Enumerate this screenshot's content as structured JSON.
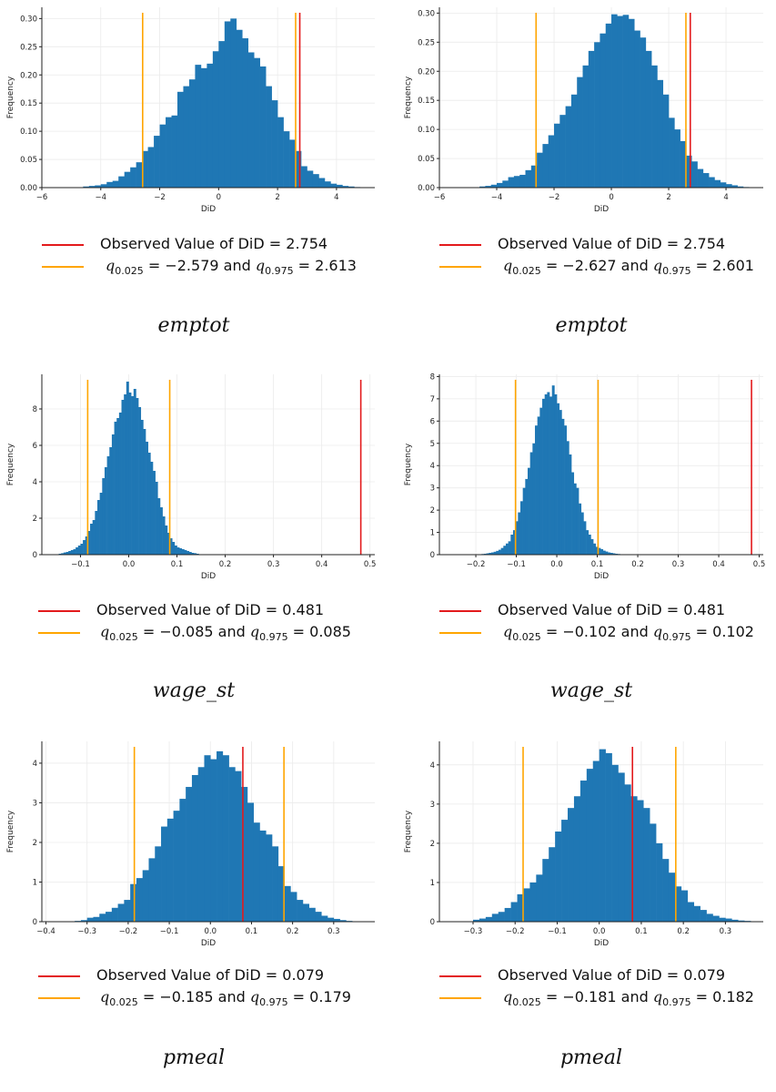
{
  "colors": {
    "bar": "#1f77b4",
    "observed": "#e31a1c",
    "quantile": "#ffa500",
    "grid": "#ebebeb"
  },
  "chart_data": [
    {
      "type": "bar",
      "xlabel": "DiD",
      "ylabel": "Frequency",
      "xlim": [
        -6,
        5.3
      ],
      "ylim": [
        0,
        0.32
      ],
      "xticks": [
        -6,
        -4,
        -2,
        0,
        2,
        4
      ],
      "xtick_labels": [
        "−6",
        "−4",
        "−2",
        "0",
        "2",
        "4"
      ],
      "yticks": [
        0,
        0.05,
        0.1,
        0.15,
        0.2,
        0.25,
        0.3
      ],
      "ytick_labels": [
        "0.00",
        "0.05",
        "0.10",
        "0.15",
        "0.20",
        "0.25",
        "0.30"
      ],
      "bin_width": 0.2,
      "bins_x": [
        -4.6,
        -4.4,
        -4.2,
        -4.0,
        -3.8,
        -3.6,
        -3.4,
        -3.2,
        -3.0,
        -2.8,
        -2.6,
        -2.4,
        -2.2,
        -2.0,
        -1.8,
        -1.6,
        -1.4,
        -1.2,
        -1.0,
        -0.8,
        -0.6,
        -0.4,
        -0.2,
        0.0,
        0.2,
        0.4,
        0.6,
        0.8,
        1.0,
        1.2,
        1.4,
        1.6,
        1.8,
        2.0,
        2.2,
        2.4,
        2.6,
        2.8,
        3.0,
        3.2,
        3.4,
        3.6,
        3.8,
        4.0,
        4.2,
        4.4,
        4.6
      ],
      "bins_y": [
        0.002,
        0.003,
        0.004,
        0.006,
        0.01,
        0.012,
        0.02,
        0.028,
        0.036,
        0.045,
        0.065,
        0.072,
        0.092,
        0.112,
        0.125,
        0.128,
        0.17,
        0.18,
        0.192,
        0.218,
        0.212,
        0.22,
        0.242,
        0.26,
        0.295,
        0.3,
        0.28,
        0.265,
        0.24,
        0.23,
        0.215,
        0.18,
        0.155,
        0.125,
        0.1,
        0.085,
        0.065,
        0.038,
        0.03,
        0.024,
        0.017,
        0.011,
        0.007,
        0.005,
        0.003,
        0.002,
        0.001
      ],
      "observed": 2.754,
      "q_low": -2.579,
      "q_high": 2.613,
      "legend": [
        "Observed Value of DiD = 2.754",
        "= −2.579 and",
        "= 2.613"
      ],
      "caption": "emptot"
    },
    {
      "type": "bar",
      "xlabel": "DiD",
      "ylabel": "Frequency",
      "xlim": [
        -6,
        5.3
      ],
      "ylim": [
        0,
        0.31
      ],
      "xticks": [
        -6,
        -4,
        -2,
        0,
        2,
        4
      ],
      "xtick_labels": [
        "−6",
        "−4",
        "−2",
        "0",
        "2",
        "4"
      ],
      "yticks": [
        0,
        0.05,
        0.1,
        0.15,
        0.2,
        0.25,
        0.3
      ],
      "ytick_labels": [
        "0.00",
        "0.05",
        "0.10",
        "0.15",
        "0.20",
        "0.25",
        "0.30"
      ],
      "bin_width": 0.2,
      "bins_x": [
        -4.6,
        -4.4,
        -4.2,
        -4.0,
        -3.8,
        -3.6,
        -3.4,
        -3.2,
        -3.0,
        -2.8,
        -2.6,
        -2.4,
        -2.2,
        -2.0,
        -1.8,
        -1.6,
        -1.4,
        -1.2,
        -1.0,
        -0.8,
        -0.6,
        -0.4,
        -0.2,
        0.0,
        0.2,
        0.4,
        0.6,
        0.8,
        1.0,
        1.2,
        1.4,
        1.6,
        1.8,
        2.0,
        2.2,
        2.4,
        2.6,
        2.8,
        3.0,
        3.2,
        3.4,
        3.6,
        3.8,
        4.0,
        4.2,
        4.4,
        4.6
      ],
      "bins_y": [
        0.002,
        0.003,
        0.005,
        0.008,
        0.012,
        0.018,
        0.02,
        0.022,
        0.03,
        0.038,
        0.06,
        0.075,
        0.09,
        0.11,
        0.125,
        0.14,
        0.16,
        0.19,
        0.21,
        0.235,
        0.25,
        0.265,
        0.282,
        0.298,
        0.295,
        0.297,
        0.29,
        0.27,
        0.258,
        0.235,
        0.21,
        0.185,
        0.16,
        0.12,
        0.1,
        0.08,
        0.055,
        0.045,
        0.032,
        0.025,
        0.018,
        0.013,
        0.009,
        0.006,
        0.004,
        0.002,
        0.001
      ],
      "observed": 2.754,
      "q_low": -2.627,
      "q_high": 2.601,
      "legend": [
        "Observed Value of DiD = 2.754",
        "= −2.627 and",
        "= 2.601"
      ],
      "caption": "emptot"
    },
    {
      "type": "bar",
      "xlabel": "DiD",
      "ylabel": "Frequency",
      "xlim": [
        -0.18,
        0.51
      ],
      "ylim": [
        0,
        9.9
      ],
      "xticks": [
        -0.1,
        0,
        0.1,
        0.2,
        0.3,
        0.4,
        0.5
      ],
      "xtick_labels": [
        "−0.1",
        "0.0",
        "0.1",
        "0.2",
        "0.3",
        "0.4",
        "0.5"
      ],
      "yticks": [
        0,
        2,
        4,
        6,
        8
      ],
      "ytick_labels": [
        "0",
        "2",
        "4",
        "6",
        "8"
      ],
      "bin_width": 0.005,
      "bins_x": [
        -0.145,
        -0.14,
        -0.135,
        -0.13,
        -0.125,
        -0.12,
        -0.115,
        -0.11,
        -0.105,
        -0.1,
        -0.095,
        -0.09,
        -0.085,
        -0.08,
        -0.075,
        -0.07,
        -0.065,
        -0.06,
        -0.055,
        -0.05,
        -0.045,
        -0.04,
        -0.035,
        -0.03,
        -0.025,
        -0.02,
        -0.015,
        -0.01,
        -0.005,
        0.0,
        0.005,
        0.01,
        0.015,
        0.02,
        0.025,
        0.03,
        0.035,
        0.04,
        0.045,
        0.05,
        0.055,
        0.06,
        0.065,
        0.07,
        0.075,
        0.08,
        0.085,
        0.09,
        0.095,
        0.1,
        0.105,
        0.11,
        0.115,
        0.12,
        0.125,
        0.13,
        0.135,
        0.14
      ],
      "bins_y": [
        0.05,
        0.08,
        0.12,
        0.15,
        0.2,
        0.25,
        0.3,
        0.4,
        0.5,
        0.6,
        0.8,
        1.0,
        1.3,
        1.7,
        1.9,
        2.4,
        3.0,
        3.4,
        4.2,
        4.8,
        5.4,
        5.9,
        6.6,
        7.3,
        7.5,
        7.8,
        8.5,
        8.8,
        9.5,
        8.9,
        8.7,
        9.1,
        8.6,
        8.1,
        7.4,
        6.9,
        6.2,
        5.6,
        5.1,
        4.6,
        4.0,
        3.1,
        2.6,
        2.1,
        1.6,
        1.2,
        0.9,
        0.7,
        0.5,
        0.4,
        0.35,
        0.3,
        0.25,
        0.2,
        0.15,
        0.1,
        0.08,
        0.05
      ],
      "observed": 0.481,
      "q_low": -0.085,
      "q_high": 0.085,
      "legend": [
        "Observed Value of DiD = 0.481",
        "= −0.085 and",
        "= 0.085"
      ],
      "caption": "wage_st"
    },
    {
      "type": "bar",
      "xlabel": "DiD",
      "ylabel": "Frequency",
      "xlim": [
        -0.29,
        0.51
      ],
      "ylim": [
        0,
        8.1
      ],
      "xticks": [
        -0.2,
        -0.1,
        0,
        0.1,
        0.2,
        0.3,
        0.4,
        0.5
      ],
      "xtick_labels": [
        "−0.2",
        "−0.1",
        "0.0",
        "0.1",
        "0.2",
        "0.3",
        "0.4",
        "0.5"
      ],
      "yticks": [
        0,
        1,
        2,
        3,
        4,
        5,
        6,
        7,
        8
      ],
      "ytick_labels": [
        "0",
        "1",
        "2",
        "3",
        "4",
        "5",
        "6",
        "7",
        "8"
      ],
      "bin_width": 0.006,
      "bins_x": [
        -0.186,
        -0.18,
        -0.174,
        -0.168,
        -0.162,
        -0.156,
        -0.15,
        -0.144,
        -0.138,
        -0.132,
        -0.126,
        -0.12,
        -0.114,
        -0.108,
        -0.102,
        -0.096,
        -0.09,
        -0.084,
        -0.078,
        -0.072,
        -0.066,
        -0.06,
        -0.054,
        -0.048,
        -0.042,
        -0.036,
        -0.03,
        -0.024,
        -0.018,
        -0.012,
        -0.006,
        0.0,
        0.006,
        0.012,
        0.018,
        0.024,
        0.03,
        0.036,
        0.042,
        0.048,
        0.054,
        0.06,
        0.066,
        0.072,
        0.078,
        0.084,
        0.09,
        0.096,
        0.102,
        0.108,
        0.114,
        0.12,
        0.126,
        0.132,
        0.138,
        0.144,
        0.15,
        0.156
      ],
      "bins_y": [
        0.03,
        0.04,
        0.06,
        0.08,
        0.1,
        0.13,
        0.17,
        0.22,
        0.3,
        0.4,
        0.5,
        0.6,
        0.9,
        1.1,
        1.5,
        1.9,
        2.4,
        3.0,
        3.4,
        3.9,
        4.6,
        5.0,
        5.8,
        6.2,
        6.6,
        7.0,
        7.2,
        7.3,
        7.1,
        7.6,
        7.2,
        6.8,
        6.5,
        6.1,
        5.8,
        5.1,
        4.5,
        3.7,
        3.2,
        3.0,
        2.3,
        1.9,
        1.5,
        1.1,
        0.9,
        0.7,
        0.5,
        0.35,
        0.3,
        0.25,
        0.18,
        0.14,
        0.1,
        0.08,
        0.06,
        0.04,
        0.03,
        0.02
      ],
      "observed": 0.481,
      "q_low": -0.102,
      "q_high": 0.102,
      "legend": [
        "Observed Value of DiD = 0.481",
        "= −0.102 and",
        "= 0.102"
      ],
      "caption": "wage_st"
    },
    {
      "type": "bar",
      "xlabel": "DiD",
      "ylabel": "Frequency",
      "xlim": [
        -0.41,
        0.4
      ],
      "ylim": [
        0,
        4.55
      ],
      "xticks": [
        -0.4,
        -0.3,
        -0.2,
        -0.1,
        0,
        0.1,
        0.2,
        0.3
      ],
      "xtick_labels": [
        "−0.4",
        "−0.3",
        "−0.2",
        "−0.1",
        "0.0",
        "0.1",
        "0.2",
        "0.3"
      ],
      "yticks": [
        0,
        1,
        2,
        3,
        4
      ],
      "ytick_labels": [
        "0",
        "1",
        "2",
        "3",
        "4"
      ],
      "bin_width": 0.015,
      "bins_x": [
        -0.33,
        -0.315,
        -0.3,
        -0.285,
        -0.27,
        -0.255,
        -0.24,
        -0.225,
        -0.21,
        -0.195,
        -0.18,
        -0.165,
        -0.15,
        -0.135,
        -0.12,
        -0.105,
        -0.09,
        -0.075,
        -0.06,
        -0.045,
        -0.03,
        -0.015,
        0.0,
        0.015,
        0.03,
        0.045,
        0.06,
        0.075,
        0.09,
        0.105,
        0.12,
        0.135,
        0.15,
        0.165,
        0.18,
        0.195,
        0.21,
        0.225,
        0.24,
        0.255,
        0.27,
        0.285,
        0.3,
        0.315,
        0.33
      ],
      "bins_y": [
        0.02,
        0.04,
        0.1,
        0.12,
        0.2,
        0.25,
        0.35,
        0.45,
        0.55,
        0.95,
        1.1,
        1.3,
        1.6,
        1.9,
        2.4,
        2.6,
        2.8,
        3.1,
        3.4,
        3.7,
        3.9,
        4.2,
        4.1,
        4.3,
        4.2,
        3.9,
        3.8,
        3.4,
        3.0,
        2.5,
        2.3,
        2.2,
        1.9,
        1.4,
        0.9,
        0.75,
        0.55,
        0.45,
        0.35,
        0.25,
        0.15,
        0.1,
        0.07,
        0.04,
        0.02
      ],
      "observed": 0.079,
      "q_low": -0.185,
      "q_high": 0.179,
      "legend": [
        "Observed Value of DiD = 0.079",
        "= −0.185 and",
        "= 0.179"
      ],
      "caption": "pmeal"
    },
    {
      "type": "bar",
      "xlabel": "DiD",
      "ylabel": "Frequency",
      "xlim": [
        -0.38,
        0.39
      ],
      "ylim": [
        0,
        4.6
      ],
      "xticks": [
        -0.3,
        -0.2,
        -0.1,
        0,
        0.1,
        0.2,
        0.3
      ],
      "xtick_labels": [
        "−0.3",
        "−0.2",
        "−0.1",
        "0.0",
        "0.1",
        "0.2",
        "0.3"
      ],
      "yticks": [
        0,
        1,
        2,
        3,
        4
      ],
      "ytick_labels": [
        "0",
        "1",
        "2",
        "3",
        "4"
      ],
      "bin_width": 0.015,
      "bins_x": [
        -0.3,
        -0.285,
        -0.27,
        -0.255,
        -0.24,
        -0.225,
        -0.21,
        -0.195,
        -0.18,
        -0.165,
        -0.15,
        -0.135,
        -0.12,
        -0.105,
        -0.09,
        -0.075,
        -0.06,
        -0.045,
        -0.03,
        -0.015,
        0.0,
        0.015,
        0.03,
        0.045,
        0.06,
        0.075,
        0.09,
        0.105,
        0.12,
        0.135,
        0.15,
        0.165,
        0.18,
        0.195,
        0.21,
        0.225,
        0.24,
        0.255,
        0.27,
        0.285,
        0.3,
        0.315,
        0.33,
        0.345
      ],
      "bins_y": [
        0.05,
        0.08,
        0.12,
        0.2,
        0.25,
        0.35,
        0.5,
        0.7,
        0.85,
        1.0,
        1.2,
        1.6,
        1.9,
        2.3,
        2.6,
        2.9,
        3.2,
        3.6,
        3.9,
        4.1,
        4.4,
        4.3,
        4.0,
        3.8,
        3.5,
        3.2,
        3.1,
        2.9,
        2.5,
        2.0,
        1.6,
        1.25,
        0.9,
        0.8,
        0.5,
        0.4,
        0.3,
        0.2,
        0.15,
        0.1,
        0.08,
        0.05,
        0.03,
        0.02
      ],
      "observed": 0.079,
      "q_low": -0.181,
      "q_high": 0.182,
      "legend": [
        "Observed Value of DiD = 0.079",
        "= −0.181 and",
        "= 0.182"
      ],
      "caption": "pmeal"
    }
  ],
  "quantile_symbol": "q",
  "quantile_low_sub": "0.025",
  "quantile_high_sub": "0.975"
}
